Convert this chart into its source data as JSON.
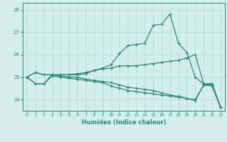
{
  "xlabel": "Humidex (Indice chaleur)",
  "x": [
    0,
    1,
    2,
    3,
    4,
    5,
    6,
    7,
    8,
    9,
    10,
    11,
    12,
    13,
    14,
    15,
    16,
    17,
    18,
    19,
    20,
    21,
    22,
    23
  ],
  "line1": [
    25.0,
    25.2,
    25.1,
    25.1,
    25.1,
    25.1,
    25.15,
    25.2,
    25.3,
    25.4,
    25.55,
    26.05,
    26.4,
    26.45,
    26.5,
    27.3,
    27.35,
    27.8,
    26.5,
    26.1,
    25.0,
    24.7,
    24.7,
    23.65
  ],
  "line2": [
    25.0,
    25.2,
    25.1,
    25.1,
    25.1,
    25.1,
    25.1,
    25.15,
    25.3,
    25.35,
    25.4,
    25.5,
    25.5,
    25.5,
    25.55,
    25.6,
    25.65,
    25.7,
    25.75,
    25.85,
    26.0,
    24.7,
    24.7,
    23.65
  ],
  "line3": [
    25.0,
    24.7,
    24.7,
    25.1,
    25.05,
    25.0,
    25.0,
    24.9,
    24.85,
    24.8,
    24.75,
    24.65,
    24.55,
    24.5,
    24.45,
    24.4,
    24.3,
    24.2,
    24.15,
    24.05,
    24.0,
    24.65,
    24.65,
    23.65
  ],
  "line4": [
    25.0,
    24.7,
    24.7,
    25.05,
    25.0,
    24.95,
    24.9,
    24.85,
    24.8,
    24.75,
    24.6,
    24.5,
    24.4,
    24.35,
    24.3,
    24.25,
    24.2,
    24.15,
    24.1,
    24.05,
    23.95,
    24.65,
    24.6,
    23.65
  ],
  "line_color": "#2a8a78",
  "bg_color": "#d4eeed",
  "grid_color": "#b5d9d6",
  "ylim": [
    23.5,
    28.3
  ],
  "yticks": [
    24,
    25,
    26,
    27,
    28
  ],
  "xticks": [
    0,
    1,
    2,
    3,
    4,
    5,
    6,
    7,
    8,
    9,
    10,
    11,
    12,
    13,
    14,
    15,
    16,
    17,
    18,
    19,
    20,
    21,
    22,
    23
  ],
  "marker": "+",
  "markersize": 3.5,
  "linewidth": 0.9
}
